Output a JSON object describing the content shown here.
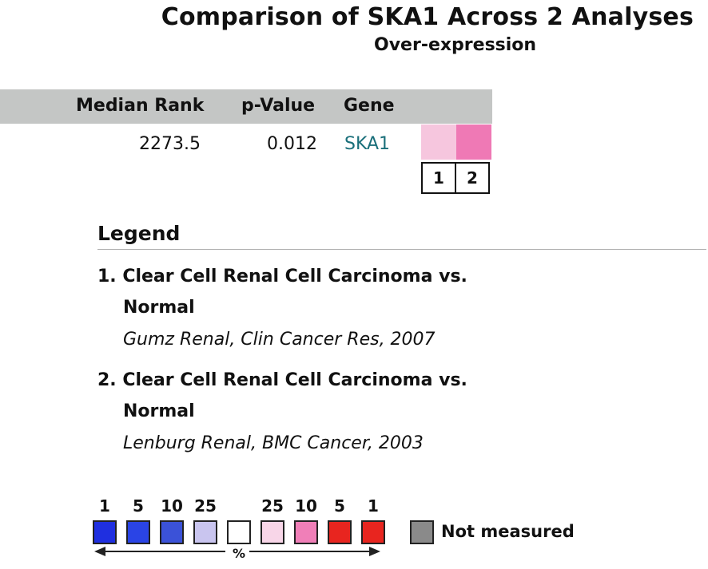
{
  "title": "Comparison of SKA1 Across 2 Analyses",
  "subtitle": "Over-expression",
  "table": {
    "headers": {
      "median_rank": "Median Rank",
      "p_value": "p-Value",
      "gene": "Gene"
    },
    "row": {
      "median_rank": "2273.5",
      "p_value": "0.012",
      "gene": "SKA1"
    },
    "heat_colors": [
      "#f6c6de",
      "#ef79b5"
    ],
    "analysis_numbers": [
      "1",
      "2"
    ]
  },
  "legend": {
    "title": "Legend",
    "entries": [
      {
        "line1": "1. Clear Cell Renal Cell Carcinoma vs.",
        "line2": "Normal",
        "citation": "Gumz Renal, Clin Cancer Res, 2007"
      },
      {
        "line1": "2. Clear Cell Renal Cell Carcinoma vs.",
        "line2": "Normal",
        "citation": "Lenburg Renal, BMC Cancer, 2003"
      }
    ]
  },
  "scale": {
    "labels": [
      "1",
      "5",
      "10",
      "25",
      "",
      "25",
      "10",
      "5",
      "1"
    ],
    "colors": [
      "#1f2fe0",
      "#2a44e6",
      "#3b52d8",
      "#c9c5ef",
      "#ffffff",
      "#f8d6e8",
      "#f07fb8",
      "#e8251f",
      "#e8251f"
    ],
    "not_measured_color": "#8a8a8a",
    "not_measured_label": "Not measured",
    "percent_symbol": "%"
  }
}
